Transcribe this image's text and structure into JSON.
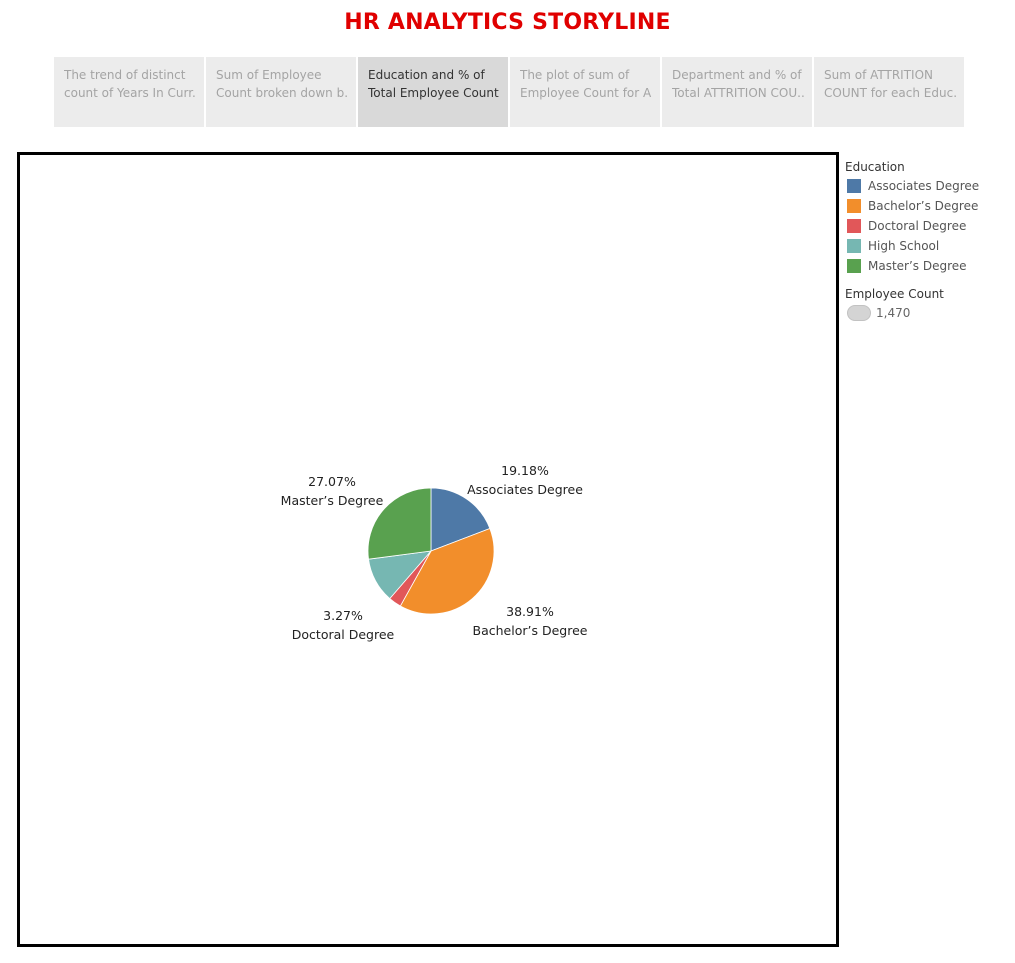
{
  "story": {
    "title": "HR ANALYTICS STORYLINE",
    "tabs": [
      {
        "line1": "The trend of distinct",
        "line2": "count of Years In Curr..",
        "active": false
      },
      {
        "line1": "Sum of Employee",
        "line2": "Count broken down b..",
        "active": false
      },
      {
        "line1": "Education and % of",
        "line2": "Total Employee Count..",
        "active": true
      },
      {
        "line1": "The plot of sum of",
        "line2": "Employee Count for A..",
        "active": false
      },
      {
        "line1": "Department and % of",
        "line2": "Total ATTRITION COU..",
        "active": false
      },
      {
        "line1": "Sum of ATTRITION",
        "line2": "COUNT for each Educ..",
        "active": false
      }
    ]
  },
  "legend": {
    "color_title": "Education",
    "size_title": "Employee Count",
    "size_value": "1,470"
  },
  "chart_data": {
    "type": "pie",
    "slices": [
      {
        "name": "Associates Degree",
        "value": 19.18,
        "label": "19.18%",
        "color": "#4e79a7"
      },
      {
        "name": "Bachelor’s Degree",
        "value": 38.91,
        "label": "38.91%",
        "color": "#f28e2b"
      },
      {
        "name": "Doctoral Degree",
        "value": 3.27,
        "label": "3.27%",
        "color": "#e15759"
      },
      {
        "name": "High School",
        "value": 11.56,
        "label": "",
        "color": "#76b7b2"
      },
      {
        "name": "Master’s Degree",
        "value": 27.07,
        "label": "27.07%",
        "color": "#59a14f"
      }
    ],
    "legend_position": "right"
  }
}
